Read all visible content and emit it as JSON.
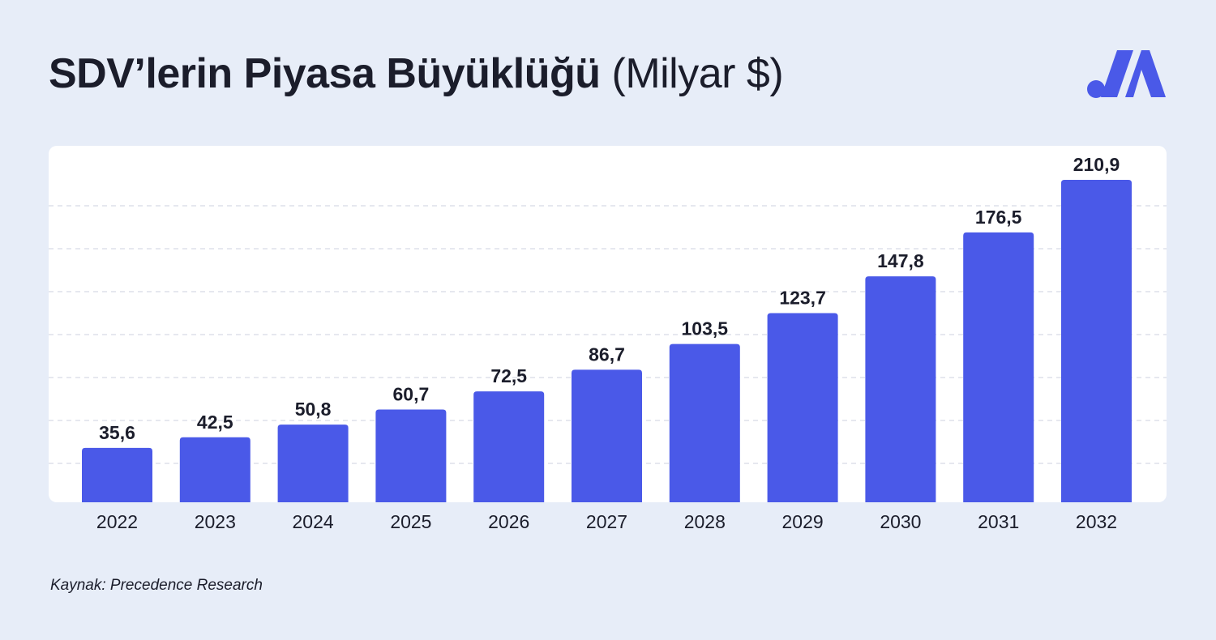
{
  "title": {
    "main": "SDV’lerin Piyasa Büyüklüğü",
    "unit": "(Milyar $)"
  },
  "source": "Kaynak: Precedence Research",
  "logo": {
    "icon": "brand-logo-icon",
    "color": "#4a59e8"
  },
  "colors": {
    "background": "#e7edf8",
    "panel": "#ffffff",
    "bar": "#4a59e8",
    "grid": "#dde1ea",
    "text": "#1b1d2b"
  },
  "chart_data": {
    "type": "bar",
    "categories": [
      "2022",
      "2023",
      "2024",
      "2025",
      "2026",
      "2027",
      "2028",
      "2029",
      "2030",
      "2031",
      "2032"
    ],
    "values": [
      35.6,
      42.5,
      50.8,
      60.7,
      72.5,
      86.7,
      103.5,
      123.7,
      147.8,
      176.5,
      210.9
    ],
    "value_labels": [
      "35,6",
      "42,5",
      "50,8",
      "60,7",
      "72,5",
      "86,7",
      "103,5",
      "123,7",
      "147,8",
      "176,5",
      "210,9"
    ],
    "title": "SDV’lerin Piyasa Büyüklüğü (Milyar $)",
    "xlabel": "",
    "ylabel": "",
    "ylim": [
      0,
      210.9
    ],
    "grid": true,
    "y_axis_visible": false,
    "legend": "none"
  }
}
